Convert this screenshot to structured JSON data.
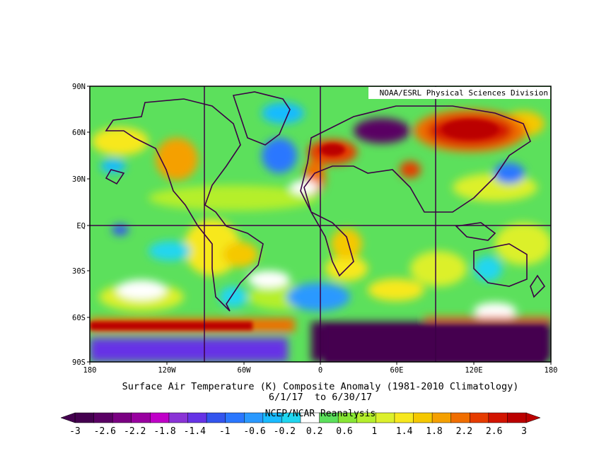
{
  "map": {
    "credit": "NOAA/ESRL Physical Sciences Division",
    "title_line1": "Surface Air Temperature (K) Composite Anomaly (1981-2010 Climatology)",
    "title_line2": "6/1/17  to 6/30/17",
    "source": "NCEP/NCAR Reanalysis",
    "lat_labels": [
      "90N",
      "60N",
      "30N",
      "EQ",
      "30S",
      "60S",
      "90S"
    ],
    "lon_labels": [
      "180",
      "120W",
      "60W",
      "0",
      "60E",
      "120E",
      "180"
    ],
    "colorbar": {
      "labels": [
        "-3",
        "-2.6",
        "-2.2",
        "-1.8",
        "-1.4",
        "-1",
        "-0.6",
        "-0.2",
        "0.2",
        "0.6",
        "1",
        "1.4",
        "1.8",
        "2.2",
        "2.6",
        "3"
      ],
      "colors": [
        "#44004f",
        "#5a0064",
        "#7a0082",
        "#9900a0",
        "#c000c8",
        "#8a33d6",
        "#6633e6",
        "#3355ee",
        "#2a77ff",
        "#2a99ff",
        "#19bbff",
        "#20d6f0",
        "#ffffff",
        "#5ce05c",
        "#88e635",
        "#b5ef2c",
        "#dcf02c",
        "#f7e81e",
        "#f5c800",
        "#f5a000",
        "#f06e00",
        "#e63c00",
        "#d21400",
        "#bb0000"
      ]
    }
  }
}
